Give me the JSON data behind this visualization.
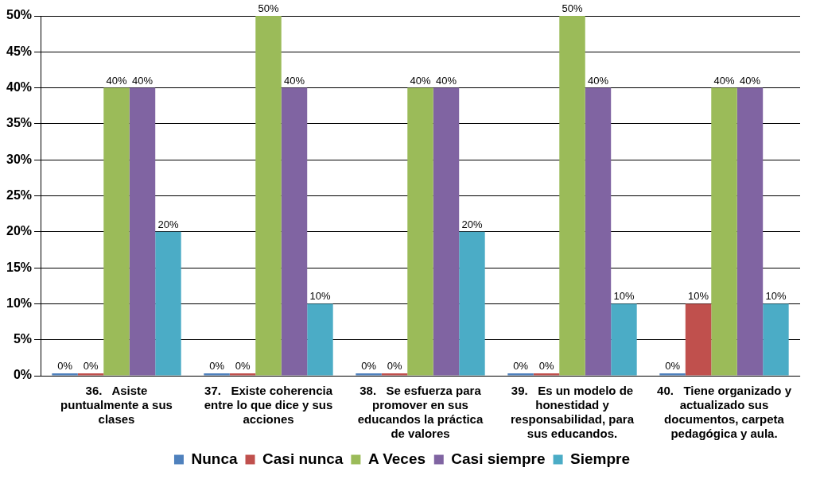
{
  "chart_data": {
    "type": "bar",
    "categories": [
      "36.   Asiste puntualmente a sus clases",
      "37.   Existe coherencia entre lo que dice y sus acciones",
      "38.   Se esfuerza para promover en sus educandos la práctica de valores",
      "39.   Es un modelo de honestidad y responsabilidad, para sus educandos.",
      "40.   Tiene organizado y actualizado sus documentos, carpeta pedagógica y aula."
    ],
    "series": [
      {
        "name": "Nunca",
        "color": "#4f81bd",
        "values": [
          0,
          0,
          0,
          0,
          0
        ],
        "value_labels": [
          "0%",
          "0%",
          "0%",
          "0%",
          "0%"
        ]
      },
      {
        "name": "Casi nunca",
        "color": "#c0504d",
        "values": [
          0,
          0,
          0,
          0,
          10
        ],
        "value_labels": [
          "0%",
          "0%",
          "0%",
          "0%",
          "10%"
        ]
      },
      {
        "name": "A Veces",
        "color": "#9bbb59",
        "values": [
          40,
          50,
          40,
          50,
          40
        ],
        "value_labels": [
          "40%",
          "50%",
          "40%",
          "50%",
          "40%"
        ]
      },
      {
        "name": "Casi siempre",
        "color": "#8064a2",
        "values": [
          40,
          40,
          40,
          40,
          40
        ],
        "value_labels": [
          "40%",
          "40%",
          "40%",
          "40%",
          "40%"
        ]
      },
      {
        "name": "Siempre",
        "color": "#4bacc6",
        "values": [
          20,
          10,
          20,
          10,
          10
        ],
        "value_labels": [
          "20%",
          "10%",
          "20%",
          "10%",
          "10%"
        ]
      }
    ],
    "ylim": [
      0,
      50
    ],
    "yticks": [
      {
        "value": 0,
        "label": "0%"
      },
      {
        "value": 5,
        "label": "5%"
      },
      {
        "value": 10,
        "label": "10%"
      },
      {
        "value": 15,
        "label": "15%"
      },
      {
        "value": 20,
        "label": "20%"
      },
      {
        "value": 25,
        "label": "25%"
      },
      {
        "value": 30,
        "label": "30%"
      },
      {
        "value": 35,
        "label": "35%"
      },
      {
        "value": 40,
        "label": "40%"
      },
      {
        "value": 45,
        "label": "45%"
      },
      {
        "value": 50,
        "label": "50%"
      }
    ],
    "grid": "y",
    "legend": "bottom"
  }
}
